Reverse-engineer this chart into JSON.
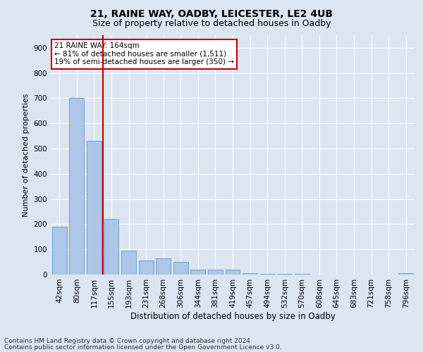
{
  "title1": "21, RAINE WAY, OADBY, LEICESTER, LE2 4UB",
  "title2": "Size of property relative to detached houses in Oadby",
  "xlabel": "Distribution of detached houses by size in Oadby",
  "ylabel": "Number of detached properties",
  "categories": [
    "42sqm",
    "80sqm",
    "117sqm",
    "155sqm",
    "193sqm",
    "231sqm",
    "268sqm",
    "306sqm",
    "344sqm",
    "381sqm",
    "419sqm",
    "457sqm",
    "494sqm",
    "532sqm",
    "570sqm",
    "608sqm",
    "645sqm",
    "683sqm",
    "721sqm",
    "758sqm",
    "796sqm"
  ],
  "values": [
    190,
    700,
    530,
    220,
    95,
    55,
    65,
    50,
    20,
    20,
    20,
    5,
    3,
    3,
    3,
    0,
    0,
    0,
    0,
    0,
    5
  ],
  "bar_color": "#aec6e8",
  "bar_edge_color": "#5b9bd5",
  "vline_color": "#c00000",
  "vline_pos": 2.5,
  "annotation_text": "21 RAINE WAY: 164sqm\n← 81% of detached houses are smaller (1,511)\n19% of semi-detached houses are larger (350) →",
  "annotation_box_color": "#ffffff",
  "annotation_box_edge": "#c00000",
  "ylim": [
    0,
    950
  ],
  "yticks": [
    0,
    100,
    200,
    300,
    400,
    500,
    600,
    700,
    800,
    900
  ],
  "footer1": "Contains HM Land Registry data © Crown copyright and database right 2024.",
  "footer2": "Contains public sector information licensed under the Open Government Licence v3.0.",
  "background_color": "#dce6f1",
  "plot_bg_color": "#dce6f1",
  "grid_color": "#ffffff",
  "title1_fontsize": 10,
  "title2_fontsize": 9,
  "xlabel_fontsize": 8.5,
  "ylabel_fontsize": 8,
  "tick_fontsize": 7.5,
  "footer_fontsize": 6.5,
  "annot_fontsize": 7.5
}
